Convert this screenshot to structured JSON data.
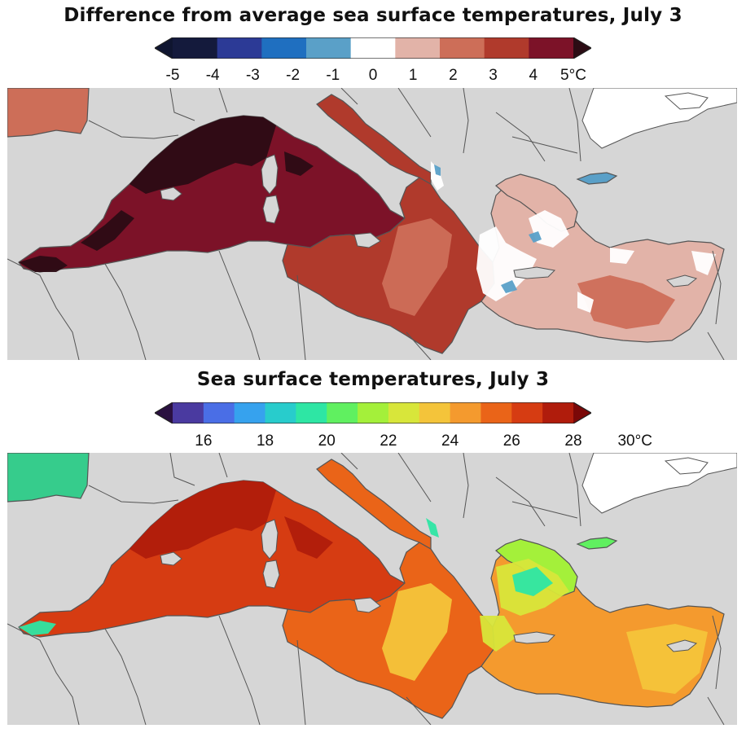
{
  "panels": [
    {
      "title": "Difference from average sea surface temperatures, July 3",
      "legend": {
        "colors": [
          "#141a3c",
          "#2c3a96",
          "#1f6fc0",
          "#5aa0c8",
          "#ffffff",
          "#e2b3a8",
          "#cd6e58",
          "#b03a2c",
          "#7c1228"
        ],
        "extend_low": "#0f1530",
        "extend_high": "#2c0c14",
        "ticks": [
          "-5",
          "-4",
          "-3",
          "-2",
          "-1",
          "0",
          "1",
          "2",
          "3",
          "4",
          "5°C"
        ]
      }
    },
    {
      "title": "Sea surface temperatures, July 3",
      "legend": {
        "colors": [
          "#4a3aa0",
          "#4a6ee6",
          "#36a2ee",
          "#28cccc",
          "#2ee6a4",
          "#60f060",
          "#a4f03a",
          "#d8e63a",
          "#f4c43a",
          "#f49a2e",
          "#ea6418",
          "#d63c12",
          "#b01c0c"
        ],
        "extend_low": "#2a1040",
        "extend_high": "#7a0808",
        "ticks": [
          "16",
          "18",
          "20",
          "22",
          "24",
          "26",
          "28",
          "30°C"
        ]
      }
    }
  ],
  "map_colors": {
    "land": "#d6d6d6",
    "border": "#555555",
    "missing": "#ffffff"
  }
}
